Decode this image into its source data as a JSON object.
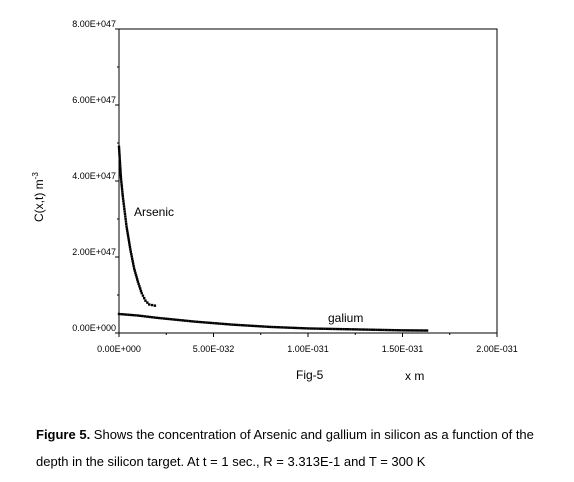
{
  "chart_data": {
    "type": "scatter",
    "xlabel": "x m",
    "ylabel_main": "C(x,t) m",
    "ylabel_sup": "-3",
    "subtitle": "Fig-5",
    "xlim": [
      0,
      2e-31
    ],
    "ylim": [
      0,
      8e+47
    ],
    "x_ticks": [
      0,
      5e-32,
      1e-31,
      1.5e-31,
      2e-31
    ],
    "x_tick_labels": [
      "0.00E+000",
      "5.00E-032",
      "1.00E-031",
      "1.50E-031",
      "2.00E-031"
    ],
    "y_ticks": [
      0,
      2e+47,
      4e+47,
      6e+47,
      8e+47
    ],
    "y_tick_labels": [
      "0.00E+000",
      "2.00E+047",
      "4.00E+047",
      "6.00E+047",
      "8.00E+047"
    ],
    "grid": false,
    "series": [
      {
        "name": "Arsenic",
        "x": [
          0,
          1e-33,
          2e-33,
          3e-33,
          4e-33,
          6e-33,
          8e-33,
          1e-32,
          1.2e-32,
          1.4e-32,
          1.6e-32,
          1.9e-32
        ],
        "y": [
          4.9e+47,
          4.1e+47,
          3.6e+47,
          3.2e+47,
          2.8e+47,
          2.2e+47,
          1.7e+47,
          1.35e+47,
          1.05e+47,
          8.5e+46,
          7.5e+46,
          7.2e+46
        ]
      },
      {
        "name": "galium",
        "x": [
          0,
          1e-32,
          2e-32,
          3e-32,
          4e-32,
          5e-32,
          6e-32,
          7e-32,
          8e-32,
          9e-32,
          1e-31,
          1.1e-31,
          1.2e-31,
          1.3e-31,
          1.4e-31,
          1.5e-31,
          1.63e-31
        ],
        "y": [
          5e+46,
          4.6e+46,
          4e+46,
          3.5e+46,
          3e+46,
          2.6e+46,
          2.2e+46,
          1.9e+46,
          1.6e+46,
          1.4e+46,
          1.2e+46,
          1.1e+46,
          1e+46,
          9e+45,
          8e+45,
          7e+45,
          6.5e+45
        ]
      }
    ]
  },
  "caption": {
    "label": "Figure 5.",
    "text": " Shows the concentration of Arsenic and gallium in silicon as a function of the depth in the silicon target. At t = 1 sec., R = 3.313E-1 and T = 300 K"
  }
}
